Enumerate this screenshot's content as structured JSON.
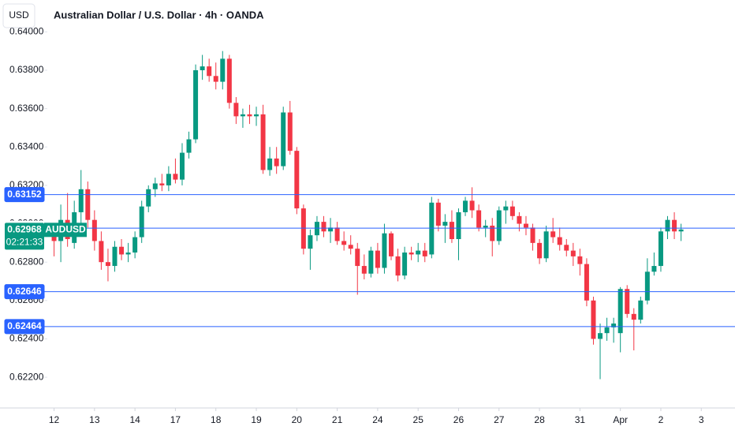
{
  "chart_data": {
    "type": "candlestick",
    "title": "Australian Dollar / U.S. Dollar · 4h · OANDA",
    "currency": "USD",
    "up_color": "#089981",
    "down_color": "#f23645",
    "open": [
      0.6295,
      0.6291,
      0.6302,
      0.629,
      0.6306,
      0.6318,
      0.6302,
      0.6291,
      0.628,
      0.6278,
      0.6288,
      0.6284,
      0.6285,
      0.6293,
      0.6309,
      0.6318,
      0.6321,
      0.632,
      0.6326,
      0.6323,
      0.6337,
      0.6344,
      0.638,
      0.6382,
      0.6377,
      0.6374,
      0.6386,
      0.6363,
      0.6356,
      0.6357,
      0.6356,
      0.6357,
      0.6328,
      0.6334,
      0.633,
      0.6358,
      0.6338,
      0.6308,
      0.6287,
      0.6294,
      0.6301,
      0.6296,
      0.6298,
      0.6291,
      0.6289,
      0.6287,
      0.6278,
      0.6274,
      0.6286,
      0.6277,
      0.6295,
      0.6283,
      0.6273,
      0.6285,
      0.6284,
      0.6286,
      0.6284,
      0.6311,
      0.6299,
      0.6301,
      0.6292,
      0.6306,
      0.6312,
      0.6307,
      0.6298,
      0.6299,
      0.6291,
      0.6307,
      0.6309,
      0.6304,
      0.63,
      0.6298,
      0.629,
      0.6282,
      0.6296,
      0.6293,
      0.6289,
      0.6286,
      0.6283,
      0.6279,
      0.626,
      0.624,
      0.6243,
      0.6246,
      0.6243,
      0.6266,
      0.6253,
      0.625,
      0.626,
      0.6275,
      0.6278,
      0.6296,
      0.6302,
      0.6296
    ],
    "high": [
      0.63,
      0.631,
      0.6316,
      0.6312,
      0.6328,
      0.6322,
      0.6307,
      0.6296,
      0.6287,
      0.6291,
      0.6292,
      0.629,
      0.6296,
      0.6312,
      0.632,
      0.6324,
      0.6326,
      0.633,
      0.6334,
      0.6342,
      0.6348,
      0.6383,
      0.6388,
      0.6386,
      0.6384,
      0.639,
      0.6388,
      0.6366,
      0.636,
      0.6362,
      0.6361,
      0.6362,
      0.634,
      0.634,
      0.6361,
      0.6364,
      0.634,
      0.631,
      0.6297,
      0.6304,
      0.6304,
      0.6303,
      0.6301,
      0.6296,
      0.6294,
      0.629,
      0.6284,
      0.6288,
      0.629,
      0.63,
      0.6296,
      0.6287,
      0.6288,
      0.6288,
      0.629,
      0.629,
      0.6314,
      0.6313,
      0.6305,
      0.6307,
      0.6308,
      0.6314,
      0.6319,
      0.631,
      0.6302,
      0.6303,
      0.6309,
      0.6312,
      0.6312,
      0.6306,
      0.6304,
      0.63,
      0.6292,
      0.6299,
      0.6303,
      0.6298,
      0.6292,
      0.629,
      0.6287,
      0.6282,
      0.6262,
      0.6248,
      0.6251,
      0.6251,
      0.6267,
      0.6268,
      0.6256,
      0.6262,
      0.6282,
      0.6285,
      0.6298,
      0.6304,
      0.6306,
      0.63
    ],
    "low": [
      0.6283,
      0.628,
      0.6288,
      0.6287,
      0.63,
      0.6298,
      0.6286,
      0.6276,
      0.627,
      0.6275,
      0.6281,
      0.628,
      0.6282,
      0.629,
      0.6306,
      0.6314,
      0.6317,
      0.6317,
      0.6321,
      0.632,
      0.6334,
      0.6342,
      0.6375,
      0.6374,
      0.637,
      0.637,
      0.636,
      0.6352,
      0.635,
      0.6352,
      0.6351,
      0.6326,
      0.6325,
      0.6326,
      0.6328,
      0.6336,
      0.6305,
      0.6284,
      0.6276,
      0.6291,
      0.6293,
      0.629,
      0.6289,
      0.6286,
      0.6284,
      0.6263,
      0.6271,
      0.6272,
      0.6274,
      0.6274,
      0.6281,
      0.627,
      0.6271,
      0.6281,
      0.628,
      0.628,
      0.6282,
      0.6296,
      0.629,
      0.629,
      0.6281,
      0.6304,
      0.6303,
      0.6296,
      0.6293,
      0.6283,
      0.6289,
      0.63,
      0.6302,
      0.6296,
      0.6294,
      0.6286,
      0.6279,
      0.628,
      0.629,
      0.6286,
      0.6283,
      0.6278,
      0.6273,
      0.6257,
      0.6237,
      0.6219,
      0.6239,
      0.6238,
      0.6233,
      0.6251,
      0.6234,
      0.6248,
      0.6258,
      0.6273,
      0.6275,
      0.6292,
      0.6292,
      0.6291
    ],
    "close": [
      0.6291,
      0.6302,
      0.6292,
      0.6306,
      0.6318,
      0.6302,
      0.6291,
      0.628,
      0.6278,
      0.6288,
      0.6284,
      0.6285,
      0.6293,
      0.6309,
      0.6318,
      0.6321,
      0.632,
      0.6326,
      0.6323,
      0.6337,
      0.6344,
      0.638,
      0.6382,
      0.6377,
      0.6374,
      0.6386,
      0.6363,
      0.6356,
      0.6357,
      0.6356,
      0.6357,
      0.6328,
      0.6334,
      0.633,
      0.6358,
      0.6338,
      0.6308,
      0.6287,
      0.6294,
      0.6301,
      0.6296,
      0.6298,
      0.6291,
      0.6289,
      0.6287,
      0.6278,
      0.6274,
      0.6286,
      0.6277,
      0.6295,
      0.6283,
      0.6273,
      0.6285,
      0.6284,
      0.6286,
      0.6283,
      0.6311,
      0.6299,
      0.6301,
      0.6292,
      0.6306,
      0.6312,
      0.6307,
      0.6298,
      0.6299,
      0.6291,
      0.6307,
      0.6309,
      0.6304,
      0.63,
      0.6298,
      0.629,
      0.6282,
      0.6296,
      0.6293,
      0.6289,
      0.6286,
      0.6283,
      0.6279,
      0.626,
      0.624,
      0.6243,
      0.6246,
      0.6248,
      0.6266,
      0.6253,
      0.625,
      0.626,
      0.6275,
      0.6278,
      0.6296,
      0.6302,
      0.6296,
      0.6297
    ],
    "xlim": [
      -1,
      101
    ],
    "xticks": [
      {
        "value": 0,
        "label": "12"
      },
      {
        "value": 6,
        "label": "13"
      },
      {
        "value": 12,
        "label": "14"
      },
      {
        "value": 18,
        "label": "17"
      },
      {
        "value": 24,
        "label": "18"
      },
      {
        "value": 30,
        "label": "19"
      },
      {
        "value": 36,
        "label": "20"
      },
      {
        "value": 42,
        "label": "21"
      },
      {
        "value": 48,
        "label": "24"
      },
      {
        "value": 54,
        "label": "25"
      },
      {
        "value": 60,
        "label": "26"
      },
      {
        "value": 66,
        "label": "27"
      },
      {
        "value": 72,
        "label": "28"
      },
      {
        "value": 78,
        "label": "31"
      },
      {
        "value": 84,
        "label": "Apr"
      },
      {
        "value": 90,
        "label": "2"
      },
      {
        "value": 96,
        "label": "3"
      }
    ],
    "ylim": [
      0.6204,
      0.64166
    ],
    "yticks": [
      {
        "value": 0.622,
        "label": "0.62200"
      },
      {
        "value": 0.624,
        "label": "0.62400"
      },
      {
        "value": 0.626,
        "label": "0.62600"
      },
      {
        "value": 0.628,
        "label": "0.62800"
      },
      {
        "value": 0.63,
        "label": "0.63000"
      },
      {
        "value": 0.632,
        "label": "0.63200"
      },
      {
        "value": 0.634,
        "label": "0.63400"
      },
      {
        "value": 0.636,
        "label": "0.63600"
      },
      {
        "value": 0.638,
        "label": "0.63800"
      },
      {
        "value": 0.64,
        "label": "0.64000"
      }
    ],
    "levels": [
      {
        "value": 0.63152,
        "color": "#2962ff"
      },
      {
        "value": 0.62977,
        "color": "#ffffff"
      },
      {
        "value": 0.62646,
        "color": "#2962ff"
      },
      {
        "value": 0.62464,
        "color": "#2962ff"
      }
    ],
    "last": {
      "value": 0.62968,
      "symbol": "AUDUSD",
      "countdown": "02:21:33",
      "color": "#089981"
    }
  }
}
